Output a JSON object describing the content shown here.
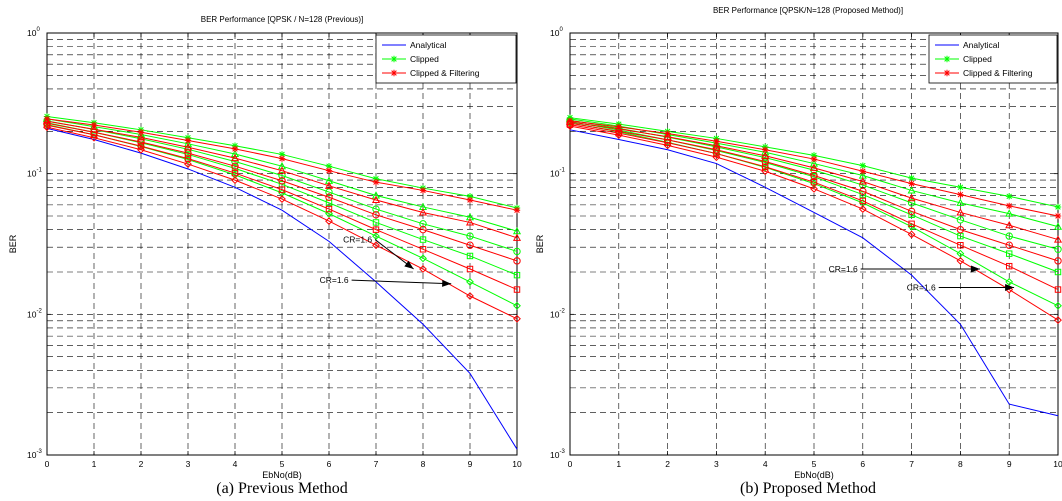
{
  "chart_data": [
    {
      "type": "line",
      "title": "BER Performance [QPSK / N=128 (Previous)]",
      "xlabel": "EbNo(dB)",
      "ylabel": "BER",
      "caption": "(a) Previous Method",
      "xlim": [
        0,
        10
      ],
      "ylim": [
        0.001,
        1
      ],
      "yscale": "log",
      "grid": true,
      "legend_position": "top-right",
      "x_ticks": [
        "0",
        "1",
        "2",
        "3",
        "4",
        "5",
        "6",
        "7",
        "8",
        "9",
        "10"
      ],
      "y_ticks": [
        {
          "base": "10",
          "exp": "0",
          "value": 1
        },
        {
          "base": "10",
          "exp": "-1",
          "value": 0.1
        },
        {
          "base": "10",
          "exp": "-2",
          "value": 0.01
        },
        {
          "base": "10",
          "exp": "-3",
          "value": 0.001
        }
      ],
      "legend": [
        {
          "label": "Analytical",
          "color": "#0000ff",
          "marker": "none"
        },
        {
          "label": "Clipped",
          "color": "#00ff00",
          "marker": "star"
        },
        {
          "label": "Clipped & Filtering",
          "color": "#ff0000",
          "marker": "star"
        }
      ],
      "x": [
        0,
        1,
        2,
        3,
        4,
        5,
        6,
        7,
        8,
        9,
        10
      ],
      "series": [
        {
          "name": "Analytical",
          "color": "#0000ff",
          "marker": "none",
          "values": [
            0.21,
            0.175,
            0.14,
            0.108,
            0.08,
            0.055,
            0.033,
            0.017,
            0.0085,
            0.0038,
            0.0011
          ]
        },
        {
          "color": "#00ff00",
          "marker": "star",
          "values": [
            0.255,
            0.23,
            0.205,
            0.18,
            0.158,
            0.137,
            0.113,
            0.092,
            0.079,
            0.069,
            0.057
          ]
        },
        {
          "color": "#00ff00",
          "marker": "triangle",
          "values": [
            0.245,
            0.216,
            0.19,
            0.163,
            0.138,
            0.113,
            0.089,
            0.07,
            0.058,
            0.049,
            0.039
          ]
        },
        {
          "color": "#00ff00",
          "marker": "circle",
          "values": [
            0.237,
            0.206,
            0.177,
            0.149,
            0.122,
            0.097,
            0.074,
            0.056,
            0.044,
            0.036,
            0.028
          ]
        },
        {
          "color": "#00ff00",
          "marker": "square",
          "values": [
            0.23,
            0.197,
            0.166,
            0.137,
            0.109,
            0.084,
            0.062,
            0.045,
            0.034,
            0.026,
            0.019
          ]
        },
        {
          "color": "#00ff00",
          "marker": "diamond",
          "values": [
            0.223,
            0.189,
            0.156,
            0.126,
            0.098,
            0.073,
            0.052,
            0.036,
            0.025,
            0.017,
            0.0115
          ]
        },
        {
          "color": "#ff0000",
          "marker": "star",
          "values": [
            0.245,
            0.222,
            0.197,
            0.172,
            0.15,
            0.128,
            0.105,
            0.087,
            0.076,
            0.065,
            0.055
          ]
        },
        {
          "color": "#ff0000",
          "marker": "triangle",
          "values": [
            0.236,
            0.207,
            0.181,
            0.154,
            0.129,
            0.105,
            0.082,
            0.065,
            0.053,
            0.045,
            0.035
          ]
        },
        {
          "color": "#ff0000",
          "marker": "circle",
          "values": [
            0.228,
            0.197,
            0.168,
            0.14,
            0.113,
            0.089,
            0.068,
            0.051,
            0.04,
            0.031,
            0.024
          ]
        },
        {
          "color": "#ff0000",
          "marker": "square",
          "values": [
            0.221,
            0.189,
            0.157,
            0.128,
            0.101,
            0.077,
            0.056,
            0.04,
            0.029,
            0.021,
            0.015
          ]
        },
        {
          "color": "#ff0000",
          "marker": "diamond",
          "values": [
            0.214,
            0.18,
            0.148,
            0.117,
            0.09,
            0.066,
            0.046,
            0.031,
            0.021,
            0.0135,
            0.0093
          ]
        }
      ],
      "annotations": [
        {
          "text": "CR=1.6",
          "x_from": 6.3,
          "y_from": 0.034,
          "x_to": 7.8,
          "y_to": 0.021
        },
        {
          "text": "CR=1.6",
          "x_from": 5.8,
          "y_from": 0.0175,
          "x_to": 8.6,
          "y_to": 0.0165
        }
      ]
    },
    {
      "type": "line",
      "title": "BER Performance [QPSK/N=128 (Proposed Method)]",
      "xlabel": "EbNo(dB)",
      "ylabel": "BER",
      "caption": "(b) Proposed Method",
      "xlim": [
        0,
        10
      ],
      "ylim": [
        0.001,
        1
      ],
      "yscale": "log",
      "grid": true,
      "legend_position": "top-right",
      "x_ticks": [
        "0",
        "1",
        "2",
        "3",
        "4",
        "5",
        "6",
        "7",
        "8",
        "9",
        "10"
      ],
      "y_ticks": [
        {
          "base": "10",
          "exp": "0",
          "value": 1
        },
        {
          "base": "10",
          "exp": "-1",
          "value": 0.1
        },
        {
          "base": "10",
          "exp": "-2",
          "value": 0.01
        },
        {
          "base": "10",
          "exp": "-3",
          "value": 0.001
        }
      ],
      "legend": [
        {
          "label": "Analytical",
          "color": "#0000ff",
          "marker": "none"
        },
        {
          "label": "Clipped",
          "color": "#00ff00",
          "marker": "star"
        },
        {
          "label": "Clipped & Filtering",
          "color": "#ff0000",
          "marker": "star"
        }
      ],
      "x": [
        0,
        1,
        2,
        3,
        4,
        5,
        6,
        7,
        8,
        9,
        10
      ],
      "series": [
        {
          "name": "Analytical",
          "color": "#0000ff",
          "marker": "none",
          "values": [
            0.205,
            0.175,
            0.148,
            0.118,
            0.08,
            0.053,
            0.035,
            0.019,
            0.0085,
            0.0023,
            0.0019
          ]
        },
        {
          "color": "#00ff00",
          "marker": "star",
          "values": [
            0.25,
            0.225,
            0.2,
            0.178,
            0.155,
            0.135,
            0.114,
            0.093,
            0.08,
            0.069,
            0.058
          ]
        },
        {
          "color": "#00ff00",
          "marker": "triangle",
          "values": [
            0.245,
            0.218,
            0.19,
            0.165,
            0.142,
            0.118,
            0.097,
            0.076,
            0.062,
            0.052,
            0.042
          ]
        },
        {
          "color": "#00ff00",
          "marker": "circle",
          "values": [
            0.24,
            0.21,
            0.182,
            0.155,
            0.13,
            0.106,
            0.083,
            0.062,
            0.047,
            0.036,
            0.029
          ]
        },
        {
          "color": "#00ff00",
          "marker": "square",
          "values": [
            0.235,
            0.204,
            0.174,
            0.146,
            0.12,
            0.095,
            0.071,
            0.051,
            0.036,
            0.027,
            0.02
          ]
        },
        {
          "color": "#00ff00",
          "marker": "diamond",
          "values": [
            0.23,
            0.198,
            0.167,
            0.139,
            0.111,
            0.085,
            0.062,
            0.042,
            0.027,
            0.017,
            0.0115
          ]
        },
        {
          "color": "#ff0000",
          "marker": "star",
          "values": [
            0.238,
            0.215,
            0.193,
            0.17,
            0.148,
            0.127,
            0.104,
            0.085,
            0.071,
            0.059,
            0.05
          ]
        },
        {
          "color": "#ff0000",
          "marker": "triangle",
          "values": [
            0.233,
            0.208,
            0.183,
            0.158,
            0.134,
            0.11,
            0.088,
            0.067,
            0.053,
            0.043,
            0.034
          ]
        },
        {
          "color": "#ff0000",
          "marker": "circle",
          "values": [
            0.228,
            0.2,
            0.174,
            0.148,
            0.122,
            0.097,
            0.075,
            0.054,
            0.04,
            0.031,
            0.024
          ]
        },
        {
          "color": "#ff0000",
          "marker": "square",
          "values": [
            0.223,
            0.194,
            0.166,
            0.139,
            0.112,
            0.087,
            0.064,
            0.044,
            0.031,
            0.022,
            0.015
          ]
        },
        {
          "color": "#ff0000",
          "marker": "diamond",
          "values": [
            0.218,
            0.188,
            0.159,
            0.131,
            0.104,
            0.078,
            0.056,
            0.037,
            0.024,
            0.015,
            0.0091
          ]
        }
      ],
      "annotations": [
        {
          "text": "CR=1.6",
          "x_from": 5.3,
          "y_from": 0.021,
          "x_to": 8.4,
          "y_to": 0.021
        },
        {
          "text": "CR=1.6",
          "x_from": 6.9,
          "y_from": 0.0155,
          "x_to": 9.1,
          "y_to": 0.0155
        }
      ]
    }
  ]
}
